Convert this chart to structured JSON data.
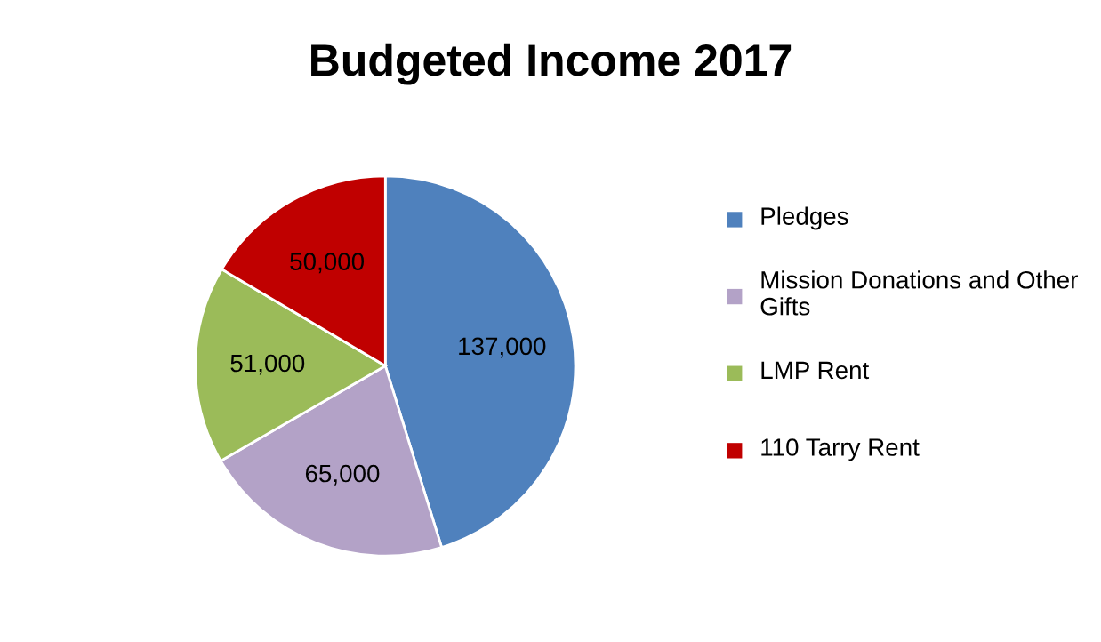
{
  "chart_data": {
    "type": "pie",
    "title": "Budgeted Income 2017",
    "categories": [
      "Pledges",
      "Mission Donations and Other Gifts",
      "LMP Rent",
      "110 Tarry Rent"
    ],
    "values": [
      137000,
      65000,
      51000,
      50000
    ],
    "value_labels": [
      "137,000",
      "65,000",
      "51,000",
      "50,000"
    ],
    "colors": [
      "#4f81bd",
      "#b3a2c7",
      "#9bbb59",
      "#c00000"
    ],
    "legend": "right"
  }
}
